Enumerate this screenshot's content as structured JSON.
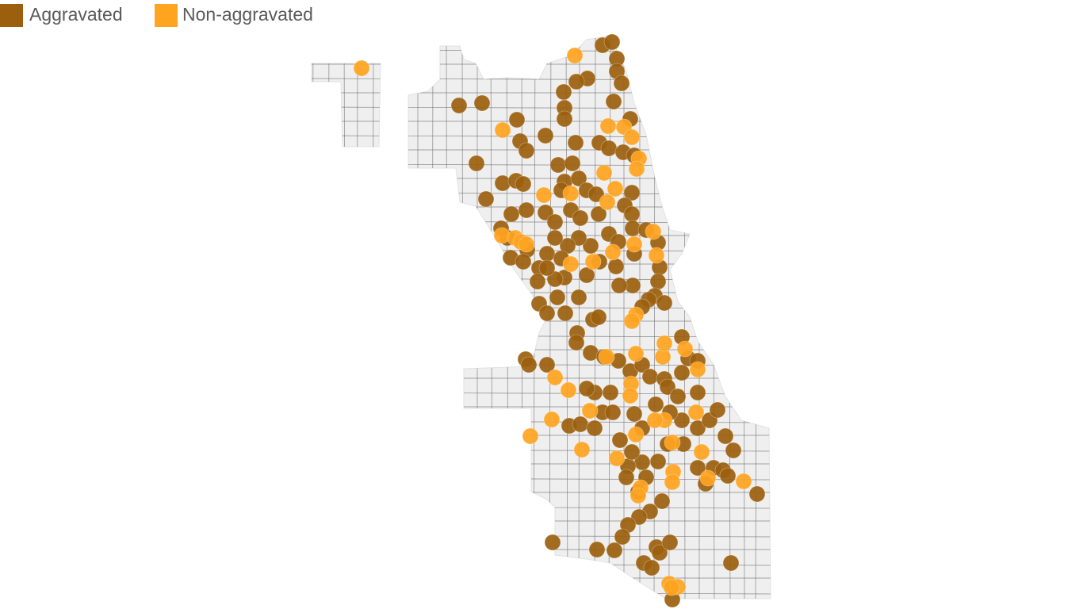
{
  "legend": {
    "items": [
      {
        "label": "Aggravated",
        "color": "#9b5f0d"
      },
      {
        "label": "Non-aggravated",
        "color": "#ffa41f"
      }
    ]
  }
}
